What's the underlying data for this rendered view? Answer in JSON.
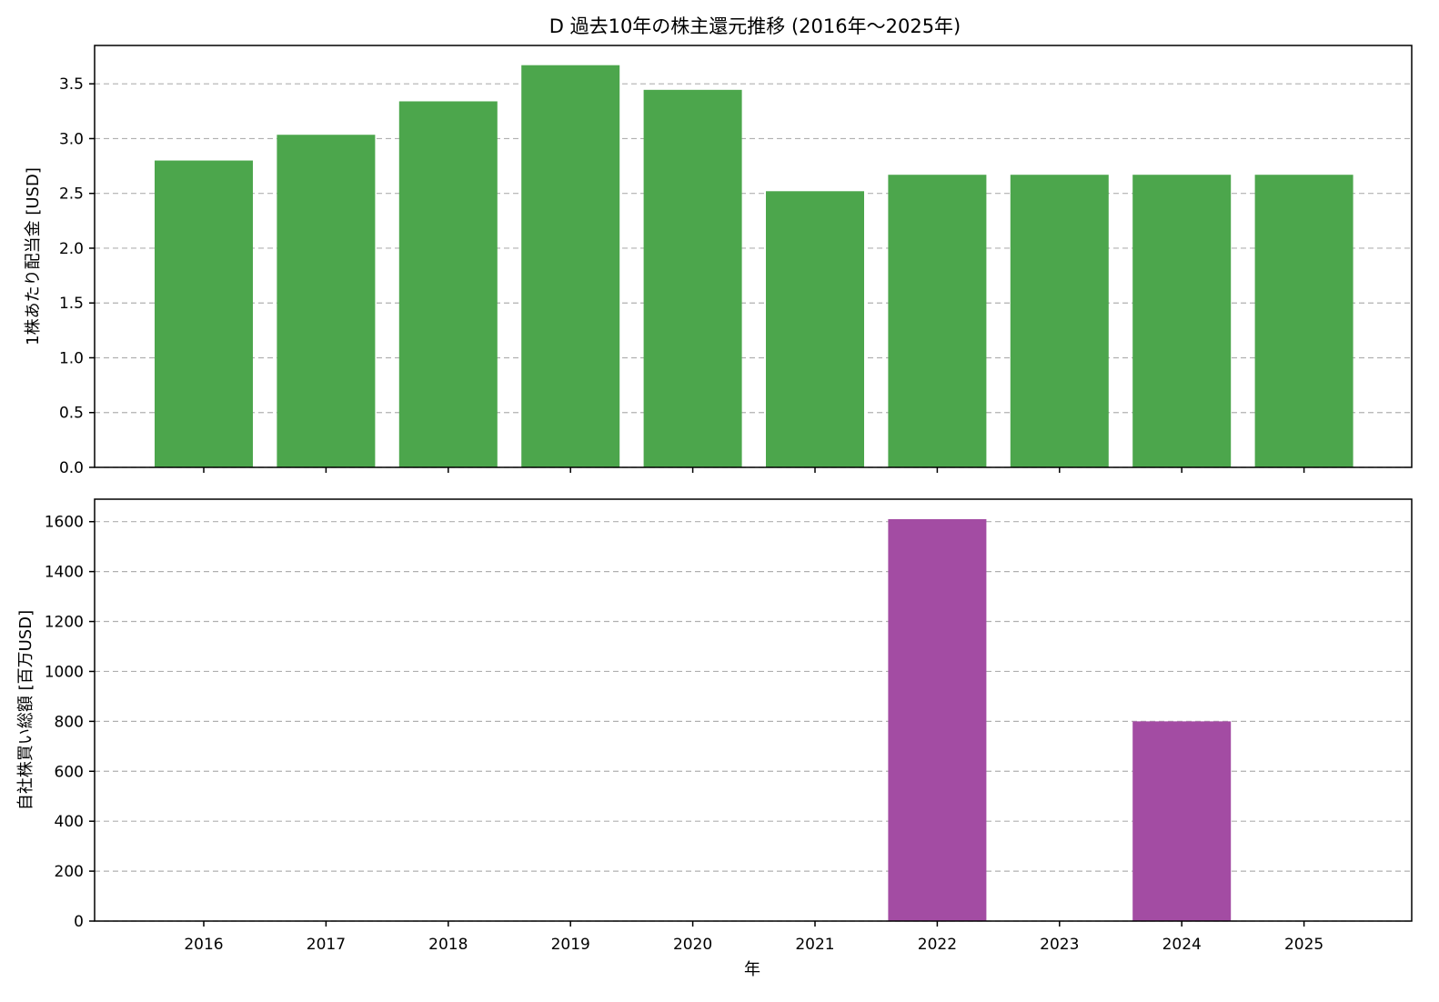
{
  "title": "D 過去10年の株主還元推移 (2016年～2025年)",
  "colors": {
    "dividend": "#4ca64c",
    "buyback": "#a34ca3"
  },
  "chart_data": [
    {
      "type": "bar",
      "ylabel": "1株あたり配当金 [USD]",
      "xlabel": "",
      "categories": [
        "2016",
        "2017",
        "2018",
        "2019",
        "2020",
        "2021",
        "2022",
        "2023",
        "2024",
        "2025"
      ],
      "values": [
        2.8,
        3.035,
        3.34,
        3.67,
        3.445,
        2.52,
        2.67,
        2.67,
        2.67,
        2.67
      ],
      "ylim": [
        0,
        3.85
      ],
      "yticks": [
        0.0,
        0.5,
        1.0,
        1.5,
        2.0,
        2.5,
        3.0,
        3.5
      ],
      "ytick_labels": [
        "0.0",
        "0.5",
        "1.0",
        "1.5",
        "2.0",
        "2.5",
        "3.0",
        "3.5"
      ],
      "grid": "y-dashed",
      "show_xtick_labels": false
    },
    {
      "type": "bar",
      "ylabel": "自社株買い総額 [百万USD]",
      "xlabel": "年",
      "categories": [
        "2016",
        "2017",
        "2018",
        "2019",
        "2020",
        "2021",
        "2022",
        "2023",
        "2024",
        "2025"
      ],
      "values": [
        0,
        0,
        0,
        0,
        0,
        0,
        1610,
        0,
        800,
        0
      ],
      "ylim": [
        0,
        1690
      ],
      "yticks": [
        0,
        200,
        400,
        600,
        800,
        1000,
        1200,
        1400,
        1600
      ],
      "ytick_labels": [
        "0",
        "200",
        "400",
        "600",
        "800",
        "1000",
        "1200",
        "1400",
        "1600"
      ],
      "grid": "y-dashed",
      "show_xtick_labels": true
    }
  ]
}
